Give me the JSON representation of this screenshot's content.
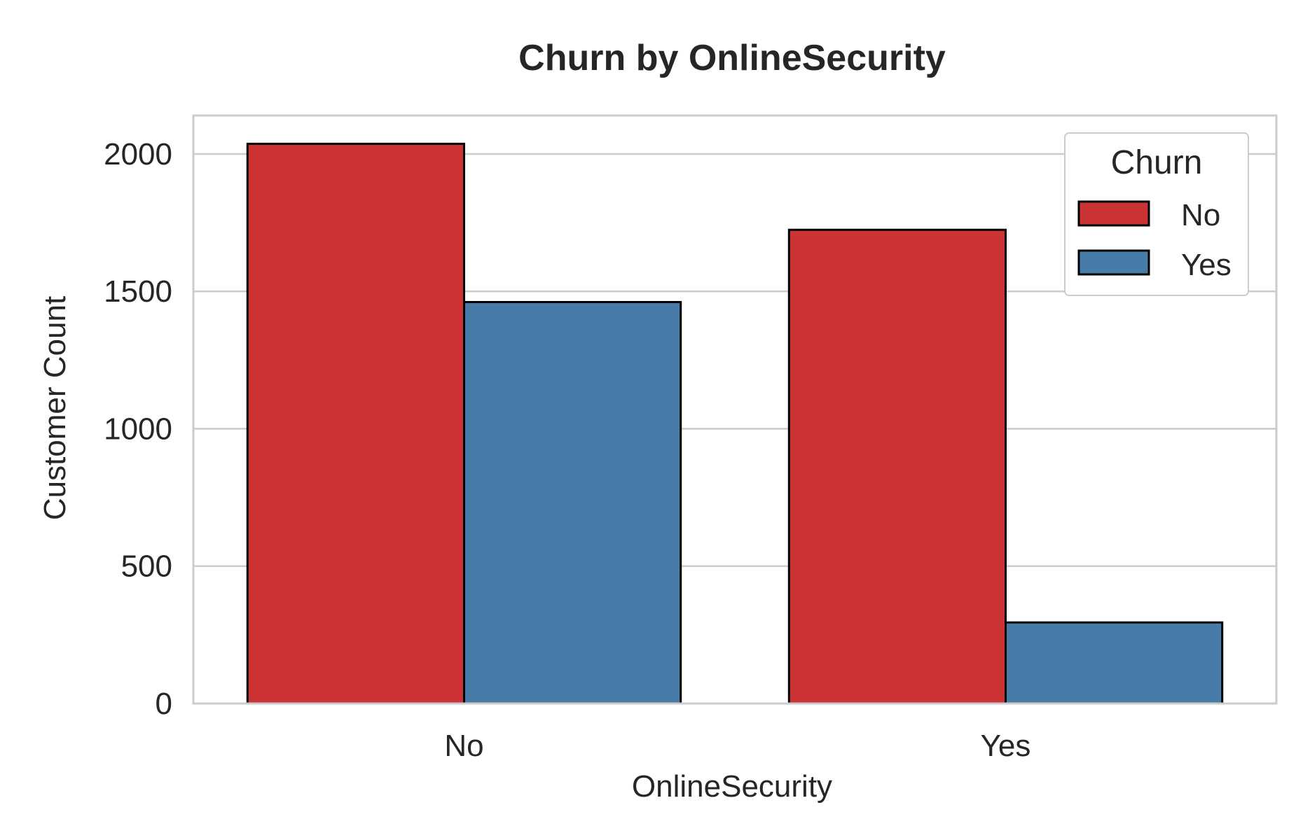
{
  "colors": {
    "No": "#cc3335",
    "Yes": "#477ca8",
    "edge": "#000000",
    "grid": "#cccccc",
    "frame": "#cccccc"
  },
  "chart_data": {
    "type": "bar",
    "title": "Churn by OnlineSecurity",
    "xlabel": "OnlineSecurity",
    "ylabel": "Customer Count",
    "categories": [
      "No",
      "Yes"
    ],
    "series": [
      {
        "name": "No",
        "values": [
          2037,
          1724
        ]
      },
      {
        "name": "Yes",
        "values": [
          1461,
          295
        ]
      }
    ],
    "ylim": [
      0,
      2140
    ],
    "yticks": [
      0,
      500,
      1000,
      1500,
      2000
    ],
    "grid": true,
    "legend": {
      "title": "Churn",
      "placement": "top-right",
      "entries": [
        "No",
        "Yes"
      ]
    }
  }
}
